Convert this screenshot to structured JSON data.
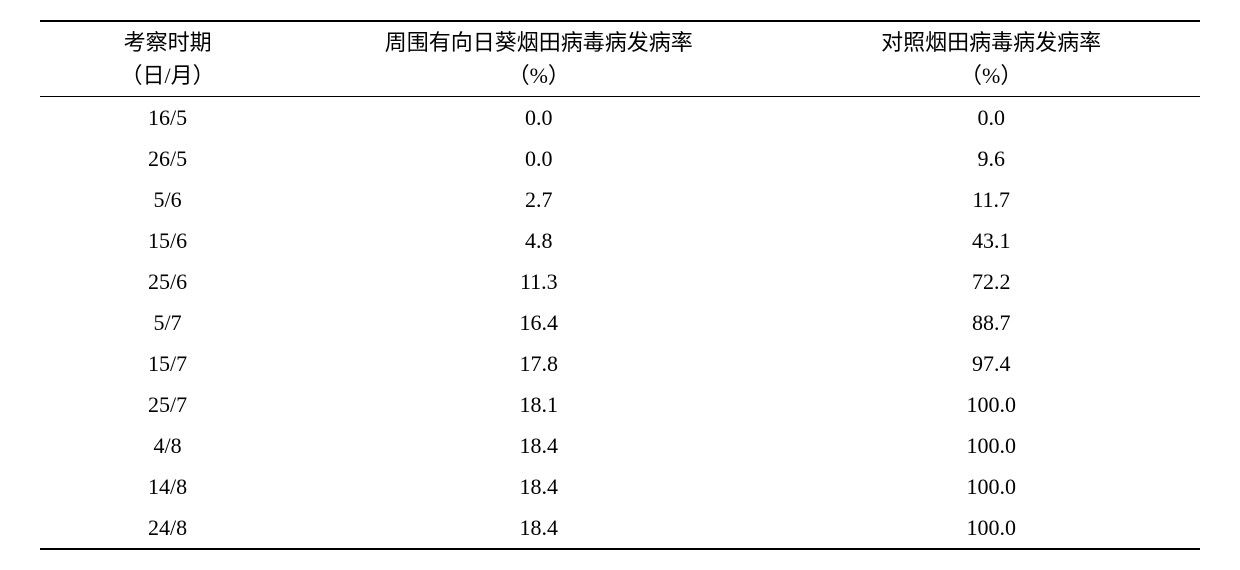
{
  "table": {
    "type": "table",
    "background_color": "#ffffff",
    "text_color": "#000000",
    "border_color": "#000000",
    "font_family": "SimSun",
    "font_size_pt": 16,
    "column_widths_pct": [
      22,
      42,
      36
    ],
    "alignment": [
      "center",
      "center",
      "center"
    ],
    "header": {
      "col1_line1": "考察时期",
      "col1_line2": "（日/月）",
      "col2_line1": "周围有向日葵烟田病毒病发病率",
      "col2_line2": "（%）",
      "col3_line1": "对照烟田病毒病发病率",
      "col3_line2": "（%）"
    },
    "rows": [
      {
        "c0": "16/5",
        "c1": "0.0",
        "c2": "0.0"
      },
      {
        "c0": "26/5",
        "c1": "0.0",
        "c2": "9.6"
      },
      {
        "c0": "5/6",
        "c1": "2.7",
        "c2": "11.7"
      },
      {
        "c0": "15/6",
        "c1": "4.8",
        "c2": "43.1"
      },
      {
        "c0": "25/6",
        "c1": "11.3",
        "c2": "72.2"
      },
      {
        "c0": "5/7",
        "c1": "16.4",
        "c2": "88.7"
      },
      {
        "c0": "15/7",
        "c1": "17.8",
        "c2": "97.4"
      },
      {
        "c0": "25/7",
        "c1": "18.1",
        "c2": "100.0"
      },
      {
        "c0": "4/8",
        "c1": "18.4",
        "c2": "100.0"
      },
      {
        "c0": "14/8",
        "c1": "18.4",
        "c2": "100.0"
      },
      {
        "c0": "24/8",
        "c1": "18.4",
        "c2": "100.0"
      }
    ]
  }
}
